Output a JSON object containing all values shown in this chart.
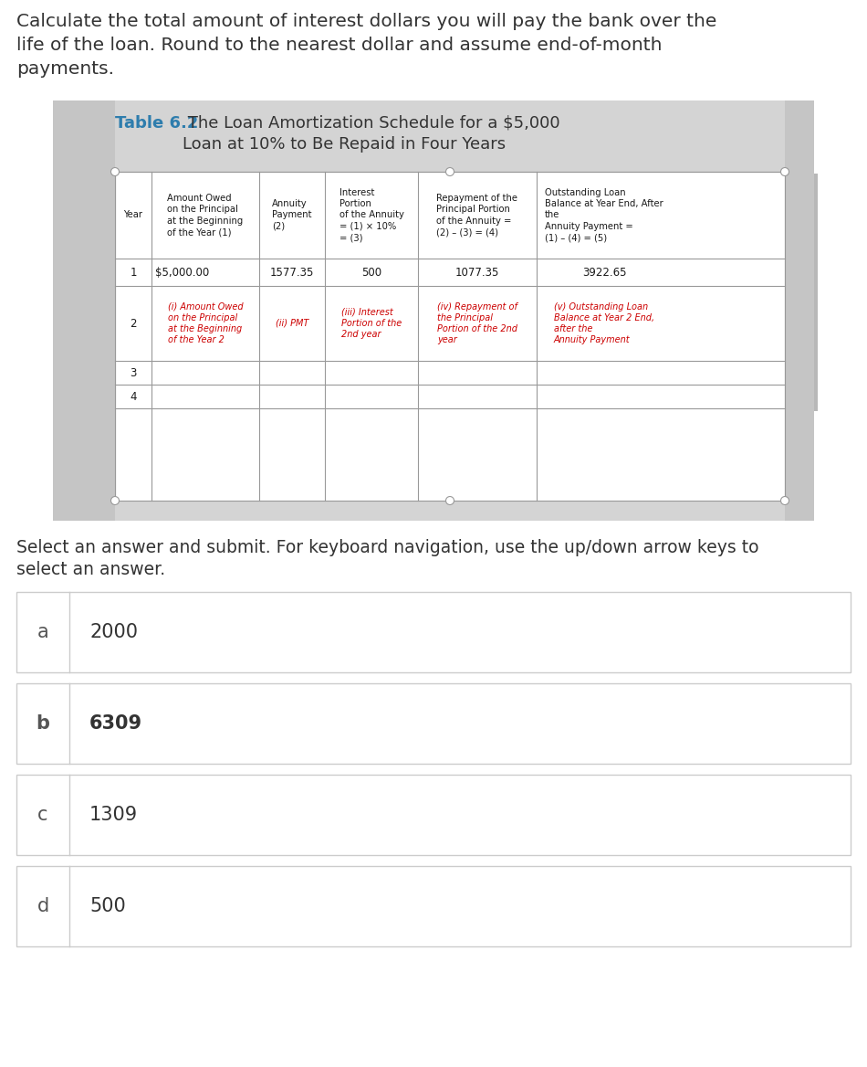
{
  "question_text_lines": [
    "Calculate the total amount of interest dollars you will pay the bank over the",
    "life of the loan. Round to the nearest dollar and assume end-of-month",
    "payments."
  ],
  "table_title_bold": "Table 6.2",
  "table_title_rest": " The Loan Amortization Schedule for a $5,000\nLoan at 10% to Be Repaid in Four Years",
  "col_headers": [
    "Year",
    "Amount Owed\non the Principal\nat the Beginning\nof the Year (1)",
    "Annuity\nPayment\n(2)",
    "Interest\nPortion\nof the Annuity\n= (1) × 10%\n= (3)",
    "Repayment of the\nPrincipal Portion\nof the Annuity =\n(2) – (3) = (4)",
    "Outstanding Loan\nBalance at Year End, After\nthe\nAnnuity Payment =\n(1) – (4) = (5)"
  ],
  "row1": [
    "1",
    "$5,000.00",
    "1577.35",
    "500",
    "1077.35",
    "3922.65"
  ],
  "row2_year": "2",
  "row2_italic": [
    "(i) Amount Owed\non the Principal\nat the Beginning\nof the Year 2",
    "(ii) PMT",
    "(iii) Interest\nPortion of the\n2nd year",
    "(iv) Repayment of\nthe Principal\nPortion of the 2nd\nyear",
    "(v) Outstanding Loan\nBalance at Year 2 End,\nafter the\nAnnuity Payment"
  ],
  "select_text_lines": [
    "Select an answer and submit. For keyboard navigation, use the up/down arrow keys to",
    "select an answer."
  ],
  "answers": [
    {
      "letter": "a",
      "value": "2000",
      "bold": false
    },
    {
      "letter": "b",
      "value": "6309",
      "bold": true
    },
    {
      "letter": "c",
      "value": "1309",
      "bold": false
    },
    {
      "letter": "d",
      "value": "500",
      "bold": false
    }
  ],
  "panel_bg": "#d4d4d4",
  "table_bg": "#ffffff",
  "italic_color": "#cc0000",
  "title_bold_color": "#2e7dad",
  "title_rest_color": "#333333",
  "question_color": "#333333",
  "select_color": "#333333",
  "answer_letter_color": "#555555",
  "answer_val_color": "#333333",
  "box_border_color": "#cccccc",
  "table_line_color": "#999999"
}
